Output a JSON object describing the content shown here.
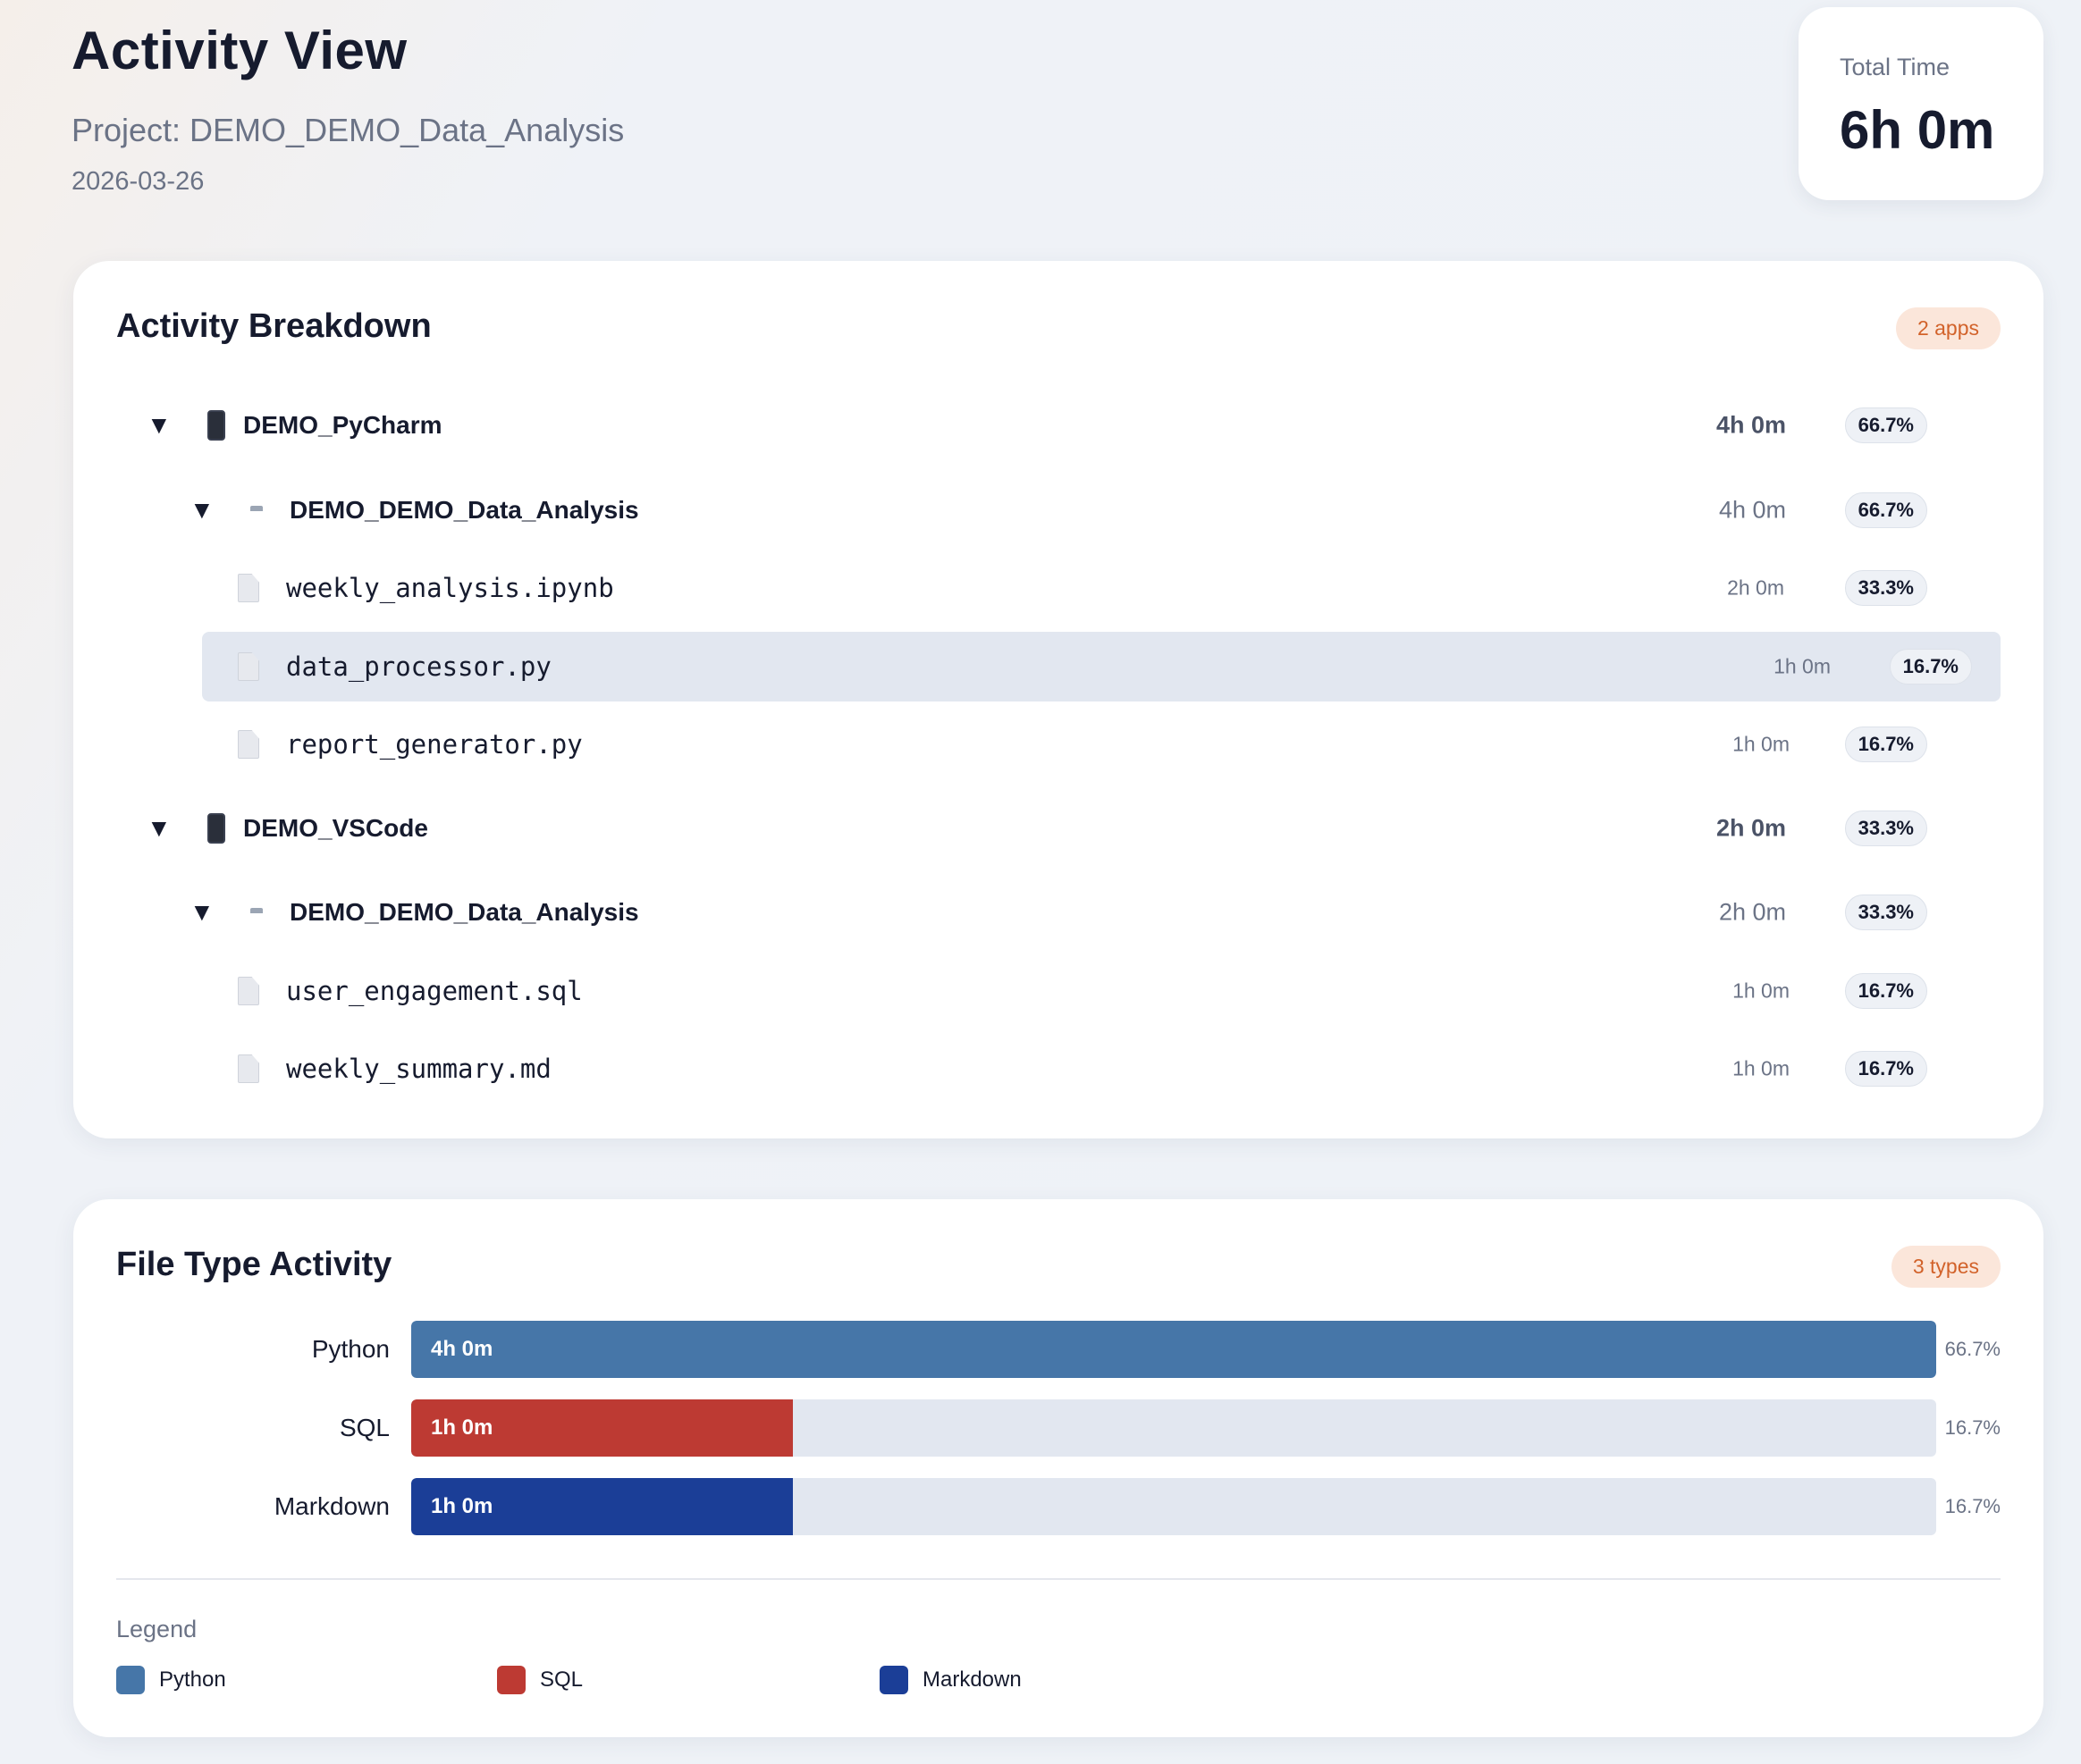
{
  "header": {
    "title": "Activity View",
    "project": "Project: DEMO_DEMO_Data_Analysis",
    "date": "2026-03-26"
  },
  "total": {
    "label": "Total Time",
    "value": "6h 0m"
  },
  "breakdown": {
    "title": "Activity Breakdown",
    "badge": "2 apps",
    "rows": [
      {
        "level": "app",
        "toggle": "▼",
        "icon": "phone-icon",
        "label": "DEMO_PyCharm",
        "time": "4h 0m",
        "pct": "66.7%"
      },
      {
        "level": "project",
        "toggle": "▼",
        "icon": "folder-icon",
        "label": "DEMO_DEMO_Data_Analysis",
        "time": "4h 0m",
        "pct": "66.7%"
      },
      {
        "level": "file",
        "icon": "file-icon",
        "label": "weekly_analysis.ipynb",
        "time": "2h 0m",
        "pct": "33.3%"
      },
      {
        "level": "file",
        "icon": "file-icon",
        "label": "data_processor.py",
        "time": "1h 0m",
        "pct": "16.7%",
        "selected": true
      },
      {
        "level": "file",
        "icon": "file-icon",
        "label": "report_generator.py",
        "time": "1h 0m",
        "pct": "16.7%"
      },
      {
        "level": "app",
        "toggle": "▼",
        "icon": "phone-icon",
        "label": "DEMO_VSCode",
        "time": "2h 0m",
        "pct": "33.3%"
      },
      {
        "level": "project",
        "toggle": "▼",
        "icon": "folder-icon",
        "label": "DEMO_DEMO_Data_Analysis",
        "time": "2h 0m",
        "pct": "33.3%"
      },
      {
        "level": "file",
        "icon": "file-icon",
        "label": "user_engagement.sql",
        "time": "1h 0m",
        "pct": "16.7%"
      },
      {
        "level": "file",
        "icon": "file-icon",
        "label": "weekly_summary.md",
        "time": "1h 0m",
        "pct": "16.7%"
      }
    ]
  },
  "filetype": {
    "title": "File Type Activity",
    "badge": "3 types",
    "legend_title": "Legend"
  },
  "chart_data": {
    "type": "bar",
    "orientation": "horizontal",
    "categories": [
      "Python",
      "SQL",
      "Markdown"
    ],
    "values": [
      66.7,
      16.7,
      16.7
    ],
    "value_labels": [
      "4h 0m",
      "1h 0m",
      "1h 0m"
    ],
    "pct_labels": [
      "66.7%",
      "16.7%",
      "16.7%"
    ],
    "colors": [
      "#4676a8",
      "#bd3a33",
      "#1b3e97"
    ],
    "xlim": [
      0,
      66.7
    ],
    "legend": [
      {
        "name": "Python",
        "color": "#4676a8"
      },
      {
        "name": "SQL",
        "color": "#bd3a33"
      },
      {
        "name": "Markdown",
        "color": "#1b3e97"
      }
    ]
  }
}
